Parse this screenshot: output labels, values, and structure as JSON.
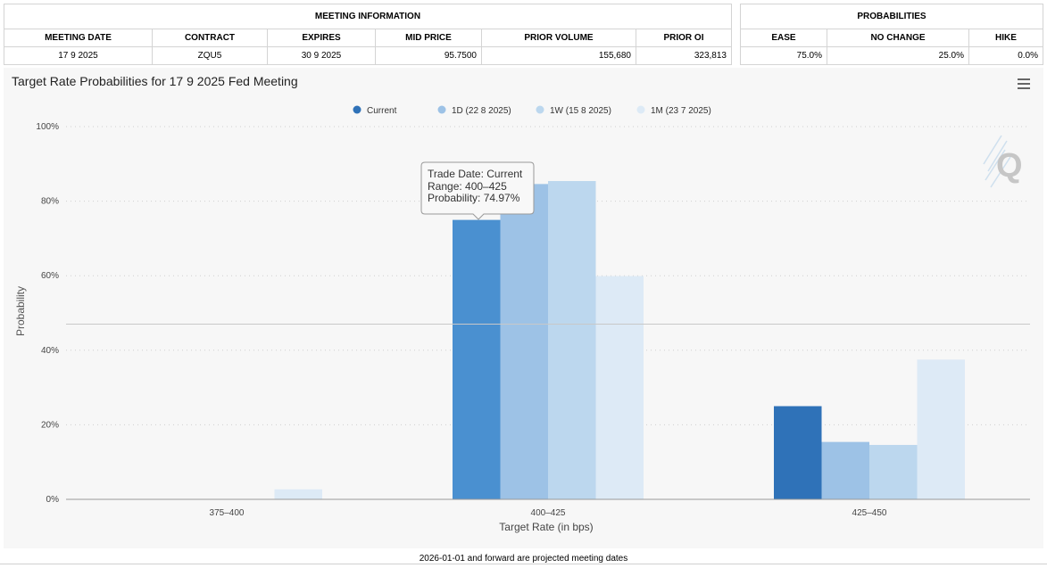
{
  "meeting_info": {
    "title": "MEETING INFORMATION",
    "headers": [
      "MEETING DATE",
      "CONTRACT",
      "EXPIRES",
      "MID PRICE",
      "PRIOR VOLUME",
      "PRIOR OI"
    ],
    "values": [
      "17 9 2025",
      "ZQU5",
      "30 9 2025",
      "95.7500",
      "155,680",
      "323,813"
    ]
  },
  "probabilities": {
    "title": "PROBABILITIES",
    "headers": [
      "EASE",
      "NO CHANGE",
      "HIKE"
    ],
    "values": [
      "75.0%",
      "25.0%",
      "0.0%"
    ]
  },
  "tooltip": {
    "trade_date": "Trade Date: Current",
    "range": "Range: 400–425",
    "probability": "Probability: 74.97%"
  },
  "watermark": "Q",
  "menu_icon": "hamburger-menu-icon",
  "footer_note": "2026-01-01 and forward are projected meeting dates",
  "chart_data": {
    "type": "bar",
    "title": "Target Rate Probabilities for 17 9 2025 Fed Meeting",
    "xlabel": "Target Rate (in bps)",
    "ylabel": "Probability",
    "ylim": [
      0,
      100
    ],
    "yticks": [
      "0%",
      "20%",
      "40%",
      "60%",
      "80%",
      "100%"
    ],
    "categories": [
      "375–400",
      "400–425",
      "425–450"
    ],
    "legend_position": "top-center",
    "series": [
      {
        "name": "Current",
        "color": "#2f72b8",
        "values": [
          0,
          74.97,
          25.0
        ]
      },
      {
        "name": "1D (22 8 2025)",
        "color": "#9dc2e6",
        "values": [
          0,
          84.6,
          15.4
        ]
      },
      {
        "name": "1W (15 8 2025)",
        "color": "#bcd7ee",
        "values": [
          0,
          85.4,
          14.6
        ]
      },
      {
        "name": "1M (23 7 2025)",
        "color": "#ddeaf6",
        "values": [
          2.7,
          59.9,
          37.5
        ]
      }
    ],
    "highlight": {
      "series": 0,
      "category": 1,
      "color": "#4a90d0"
    },
    "crosshair_value": 47
  }
}
